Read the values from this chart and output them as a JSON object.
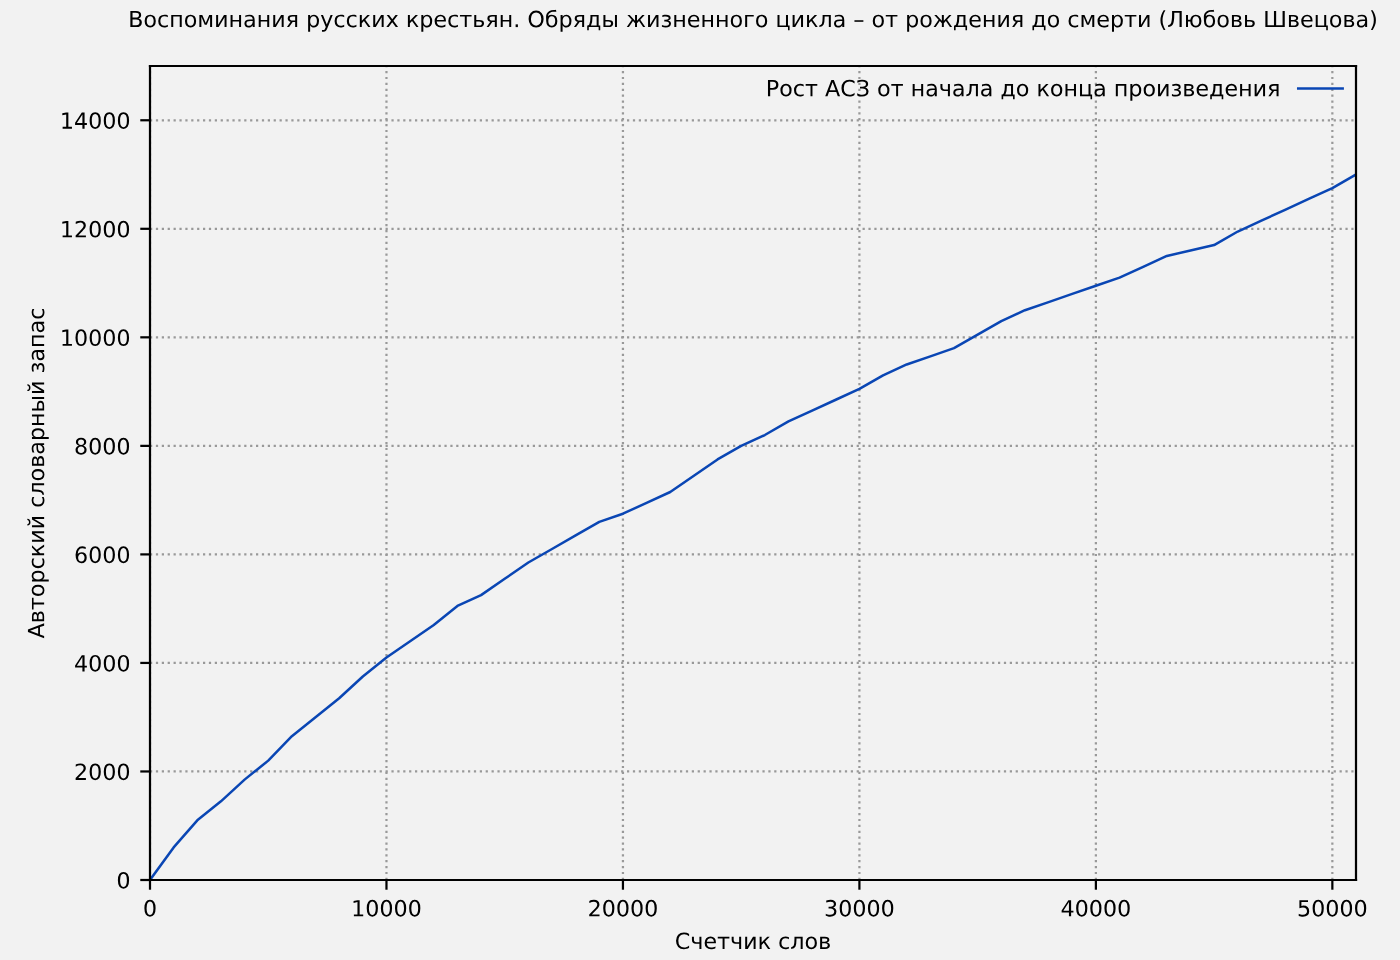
{
  "chart_data": {
    "type": "line",
    "title": "Воспоминания русских крестьян. Обряды жизненного цикла – от рождения до смерти (Любовь Швецова)",
    "xlabel": "Счетчик слов",
    "ylabel": "Авторский словарный запас",
    "x": [
      0,
      1000,
      2000,
      3000,
      4000,
      5000,
      6000,
      7000,
      8000,
      9000,
      10000,
      11000,
      12000,
      13000,
      14000,
      15000,
      16000,
      17000,
      18000,
      19000,
      20000,
      21000,
      22000,
      23000,
      24000,
      25000,
      26000,
      27000,
      28000,
      29000,
      30000,
      31000,
      32000,
      33000,
      34000,
      35000,
      36000,
      37000,
      38000,
      39000,
      40000,
      41000,
      42000,
      43000,
      44000,
      45000,
      46000,
      47000,
      48000,
      49000,
      50000,
      51000
    ],
    "series": [
      {
        "name": "Рост АСЗ от начала до конца произведения",
        "color": "#0a46b4",
        "values": [
          0,
          600,
          1100,
          1450,
          1850,
          2200,
          2650,
          3000,
          3350,
          3750,
          4100,
          4400,
          4700,
          5050,
          5250,
          5550,
          5850,
          6100,
          6350,
          6600,
          6750,
          6950,
          7150,
          7450,
          7750,
          8000,
          8200,
          8450,
          8650,
          8850,
          9050,
          9300,
          9500,
          9650,
          9800,
          10050,
          10300,
          10500,
          10650,
          10800,
          10950,
          11100,
          11300,
          11500,
          11600,
          11700,
          11950,
          12150,
          12350,
          12550,
          12750,
          13000
        ]
      }
    ],
    "xlim": [
      0,
      51000
    ],
    "ylim": [
      0,
      15000
    ],
    "xticks": [
      0,
      10000,
      20000,
      30000,
      40000,
      50000
    ],
    "yticks": [
      0,
      2000,
      4000,
      6000,
      8000,
      10000,
      12000,
      14000
    ],
    "grid": true,
    "legend": "top right",
    "marker": "none",
    "line_style": "solid"
  }
}
